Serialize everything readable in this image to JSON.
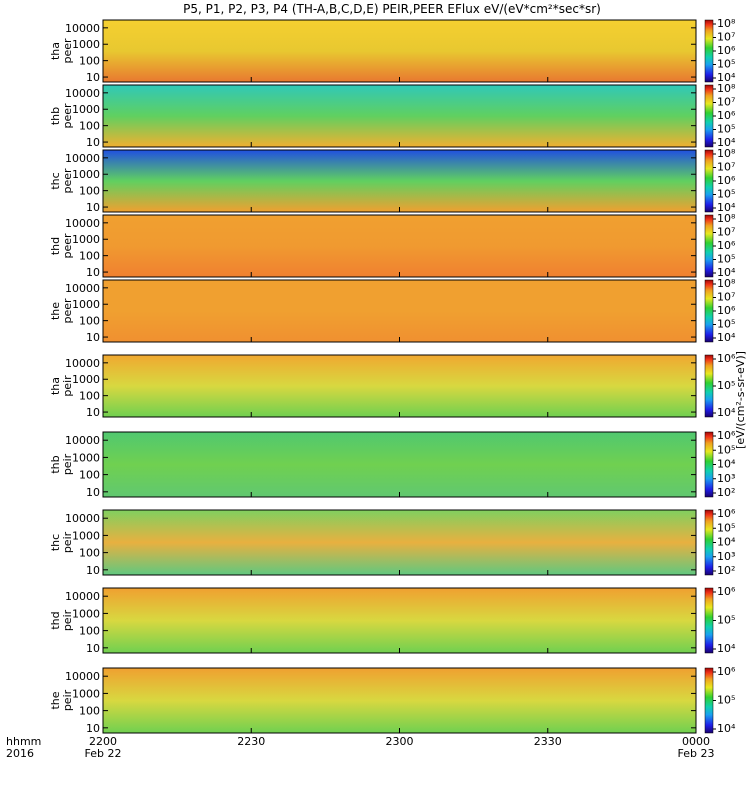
{
  "title": "P5, P1, P2, P3, P4 (TH-A,B,C,D,E) PEIR,PEER EFlux eV/(eV*cm²*sec*sr)",
  "colorbar_unit": "[eV/(cm2-s-sr-eV)]",
  "colorbar_unit_display": "[eV/(cm²-s-sr-eV)]",
  "time_axis": {
    "row1_label": "hhmm",
    "row2_label": "2016",
    "ticks": [
      "2200",
      "2230",
      "2300",
      "2330",
      "0000"
    ],
    "dates": [
      "Feb 22",
      "Feb 23"
    ]
  },
  "chart_data": [
    {
      "type": "heatmap",
      "ylabel": [
        "tha",
        "peer"
      ],
      "yticks": [
        "10",
        "100",
        "1000",
        "10000"
      ],
      "ylim": [
        5,
        30000
      ],
      "yscale": "log",
      "colorbar_ticks": [
        "10⁴",
        "10⁵",
        "10⁶",
        "10⁷",
        "10⁸"
      ]
    },
    {
      "type": "heatmap",
      "ylabel": [
        "thb",
        "peer"
      ],
      "yticks": [
        "10",
        "100",
        "1000",
        "10000"
      ],
      "ylim": [
        5,
        30000
      ],
      "yscale": "log",
      "colorbar_ticks": [
        "10⁴",
        "10⁵",
        "10⁶",
        "10⁷",
        "10⁸"
      ]
    },
    {
      "type": "heatmap",
      "ylabel": [
        "thc",
        "peer"
      ],
      "yticks": [
        "10",
        "100",
        "1000",
        "10000"
      ],
      "ylim": [
        5,
        30000
      ],
      "yscale": "log",
      "colorbar_ticks": [
        "10⁴",
        "10⁵",
        "10⁶",
        "10⁷",
        "10⁸"
      ]
    },
    {
      "type": "heatmap",
      "ylabel": [
        "thd",
        "peer"
      ],
      "yticks": [
        "10",
        "100",
        "1000",
        "10000"
      ],
      "ylim": [
        5,
        30000
      ],
      "yscale": "log",
      "colorbar_ticks": [
        "10⁴",
        "10⁵",
        "10⁶",
        "10⁷",
        "10⁸"
      ]
    },
    {
      "type": "heatmap",
      "ylabel": [
        "the",
        "peer"
      ],
      "yticks": [
        "10",
        "100",
        "1000",
        "10000"
      ],
      "ylim": [
        5,
        30000
      ],
      "yscale": "log",
      "colorbar_ticks": [
        "10⁴",
        "10⁵",
        "10⁶",
        "10⁷",
        "10⁸"
      ]
    },
    {
      "type": "heatmap",
      "ylabel": [
        "tha",
        "peir"
      ],
      "yticks": [
        "10",
        "100",
        "1000",
        "10000"
      ],
      "ylim": [
        5,
        30000
      ],
      "yscale": "log",
      "colorbar_ticks": [
        "10⁴",
        "10⁵",
        "10⁶"
      ]
    },
    {
      "type": "heatmap",
      "ylabel": [
        "thb",
        "peir"
      ],
      "yticks": [
        "10",
        "100",
        "1000",
        "10000"
      ],
      "ylim": [
        5,
        30000
      ],
      "yscale": "log",
      "colorbar_ticks": [
        "10²",
        "10³",
        "10⁴",
        "10⁵",
        "10⁶"
      ]
    },
    {
      "type": "heatmap",
      "ylabel": [
        "thc",
        "peir"
      ],
      "yticks": [
        "10",
        "100",
        "1000",
        "10000"
      ],
      "ylim": [
        5,
        30000
      ],
      "yscale": "log",
      "colorbar_ticks": [
        "10²",
        "10³",
        "10⁴",
        "10⁵",
        "10⁶"
      ]
    },
    {
      "type": "heatmap",
      "ylabel": [
        "thd",
        "peir"
      ],
      "yticks": [
        "10",
        "100",
        "1000",
        "10000"
      ],
      "ylim": [
        5,
        30000
      ],
      "yscale": "log",
      "colorbar_ticks": [
        "10⁴",
        "10⁵",
        "10⁶"
      ]
    },
    {
      "type": "heatmap",
      "ylabel": [
        "the",
        "peir"
      ],
      "yticks": [
        "10",
        "100",
        "1000",
        "10000"
      ],
      "ylim": [
        5,
        30000
      ],
      "yscale": "log",
      "colorbar_ticks": [
        "10⁴",
        "10⁵",
        "10⁶"
      ]
    }
  ]
}
